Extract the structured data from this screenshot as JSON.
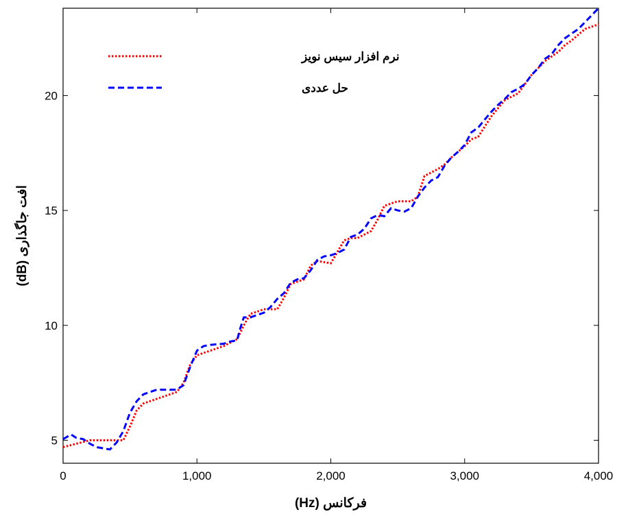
{
  "chart_data": {
    "type": "line",
    "title": "",
    "xlabel": "فرکانس (Hz)",
    "ylabel": "افت جاگذاری (dB)",
    "xlim": [
      0,
      4000
    ],
    "ylim": [
      4,
      23.8
    ],
    "grid": false,
    "legend_position": "top-left",
    "x_ticks": [
      0,
      1000,
      2000,
      3000,
      4000
    ],
    "x_tick_labels": [
      "0",
      "1,000",
      "2,000",
      "3,000",
      "4,000"
    ],
    "y_ticks": [
      5,
      10,
      15,
      20
    ],
    "y_tick_labels": [
      "5",
      "10",
      "15",
      "20"
    ],
    "series": [
      {
        "name": "نرم افزار سیس نویز",
        "color": "#ff0000",
        "style": "dotted",
        "x": [
          0,
          100,
          200,
          300,
          400,
          450,
          500,
          550,
          600,
          700,
          800,
          850,
          900,
          950,
          1000,
          1100,
          1200,
          1300,
          1350,
          1400,
          1450,
          1500,
          1600,
          1650,
          1700,
          1800,
          1850,
          1900,
          2000,
          2050,
          2100,
          2150,
          2200,
          2300,
          2350,
          2400,
          2500,
          2600,
          2650,
          2700,
          2800,
          2850,
          2900,
          3000,
          3050,
          3100,
          3200,
          3300,
          3400,
          3450,
          3500,
          3600,
          3700,
          3750,
          3800,
          3900,
          4000
        ],
        "y": [
          4.7,
          4.85,
          5.0,
          5.0,
          5.0,
          5.0,
          5.6,
          6.3,
          6.6,
          6.8,
          7.0,
          7.1,
          7.5,
          8.3,
          8.7,
          8.9,
          9.1,
          9.4,
          10.0,
          10.5,
          10.6,
          10.7,
          10.7,
          11.2,
          11.8,
          12.0,
          12.6,
          12.8,
          12.7,
          13.2,
          13.7,
          13.8,
          13.8,
          14.1,
          14.6,
          15.2,
          15.4,
          15.4,
          15.6,
          16.5,
          16.8,
          17.0,
          17.3,
          17.8,
          18.1,
          18.2,
          19.1,
          19.8,
          20.1,
          20.5,
          20.9,
          21.5,
          21.9,
          22.2,
          22.4,
          22.9,
          23.1
        ]
      },
      {
        "name": "حل عددی",
        "color": "#0000ff",
        "style": "dashed",
        "x": [
          0,
          60,
          100,
          150,
          200,
          250,
          350,
          400,
          450,
          500,
          550,
          600,
          650,
          700,
          750,
          800,
          850,
          900,
          950,
          1000,
          1050,
          1100,
          1200,
          1250,
          1300,
          1320,
          1350,
          1400,
          1450,
          1500,
          1550,
          1600,
          1650,
          1700,
          1750,
          1800,
          1850,
          1900,
          1950,
          2000,
          2050,
          2100,
          2150,
          2200,
          2250,
          2300,
          2350,
          2400,
          2450,
          2500,
          2550,
          2600,
          2650,
          2700,
          2750,
          2800,
          2850,
          2900,
          2950,
          3000,
          3050,
          3100,
          3150,
          3200,
          3250,
          3300,
          3350,
          3400,
          3450,
          3500,
          3550,
          3600,
          3650,
          3700,
          3750,
          3800,
          3850,
          3900,
          3950,
          4000
        ],
        "y": [
          5.05,
          5.25,
          5.1,
          5.05,
          4.85,
          4.7,
          4.6,
          4.9,
          5.4,
          6.2,
          6.7,
          7.0,
          7.1,
          7.2,
          7.2,
          7.2,
          7.2,
          7.4,
          8.2,
          8.9,
          9.1,
          9.15,
          9.2,
          9.3,
          9.35,
          9.8,
          10.35,
          10.35,
          10.45,
          10.55,
          10.8,
          11.15,
          11.4,
          11.85,
          12.0,
          12.05,
          12.4,
          12.85,
          13.0,
          13.05,
          13.15,
          13.3,
          13.85,
          13.95,
          14.2,
          14.65,
          14.8,
          14.75,
          15.1,
          15.0,
          14.95,
          15.1,
          15.6,
          16.0,
          16.3,
          16.45,
          16.95,
          17.3,
          17.55,
          17.85,
          18.4,
          18.6,
          18.95,
          19.3,
          19.6,
          19.85,
          20.15,
          20.3,
          20.5,
          20.9,
          21.2,
          21.6,
          21.8,
          22.2,
          22.5,
          22.7,
          22.9,
          23.2,
          23.5,
          23.8
        ]
      }
    ]
  }
}
